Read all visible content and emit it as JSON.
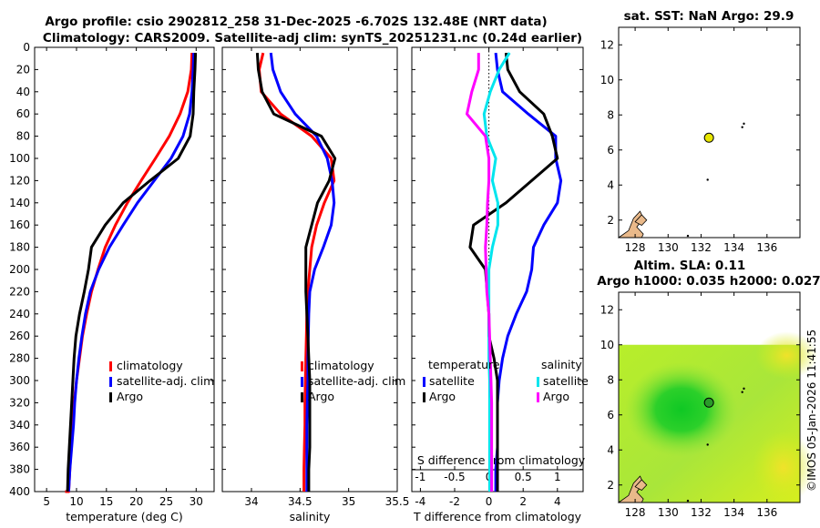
{
  "title": {
    "line1": "Argo profile: csio 2902812_258 31-Dec-2025 -6.702S 132.48E (NRT data)",
    "line2": "Climatology: CARS2009. Satellite-adj clim: synTS_20251231.nc (0.24d earlier)"
  },
  "colors": {
    "climatology": "#ff0000",
    "satellite": "#0000ff",
    "argo": "#000000",
    "s_satellite": "#00e5ee",
    "s_argo": "#ff00ff"
  },
  "stamp": "©IMOS 05-Jan-2026 11:41:55",
  "chart_data": [
    {
      "id": "temperature",
      "type": "line",
      "xlabel": "temperature (deg C)",
      "xlim": [
        3,
        33
      ],
      "xticks": [
        5,
        10,
        15,
        20,
        25,
        30
      ],
      "ylim": [
        0,
        400
      ],
      "yticks": [
        0,
        20,
        40,
        60,
        80,
        100,
        120,
        140,
        160,
        180,
        200,
        220,
        240,
        260,
        280,
        300,
        320,
        340,
        360,
        380,
        400
      ],
      "legend": {
        "position": "lower-right",
        "entries": [
          "climatology",
          "satellite-adj. clim",
          "Argo"
        ]
      },
      "series": [
        {
          "name": "climatology",
          "color": "#ff0000",
          "x": [
            29.3,
            29.2,
            28.6,
            27.3,
            25.5,
            23.2,
            20.8,
            18.5,
            16.5,
            14.8,
            13.6,
            12.5,
            11.7,
            11.0,
            10.5,
            10.0,
            9.6,
            9.3,
            9.1,
            8.9,
            8.7,
            8.5,
            8.3,
            8.2,
            8.1
          ],
          "y": [
            5,
            20,
            40,
            60,
            80,
            100,
            120,
            140,
            160,
            180,
            200,
            220,
            240,
            260,
            280,
            300,
            320,
            340,
            360,
            380,
            400,
            400,
            400,
            400,
            400
          ]
        },
        {
          "name": "satellite-adj. clim",
          "color": "#0000ff",
          "x": [
            29.6,
            29.5,
            29.3,
            28.9,
            27.8,
            25.8,
            23.0,
            20.2,
            17.8,
            15.5,
            13.7,
            12.3,
            11.5,
            10.9,
            10.4,
            10.0,
            9.7,
            9.5,
            9.2,
            8.9,
            8.7
          ],
          "y": [
            5,
            20,
            40,
            60,
            80,
            100,
            120,
            140,
            160,
            180,
            200,
            220,
            240,
            260,
            280,
            300,
            320,
            340,
            360,
            380,
            400
          ]
        },
        {
          "name": "Argo",
          "color": "#000000",
          "x": [
            29.9,
            29.8,
            29.6,
            29.5,
            29.0,
            27.0,
            22.3,
            17.8,
            14.8,
            12.5,
            12.0,
            11.3,
            10.5,
            9.9,
            9.6,
            9.4,
            9.2,
            9.0,
            8.8,
            8.6,
            8.5
          ],
          "y": [
            5,
            20,
            40,
            60,
            80,
            100,
            120,
            140,
            160,
            180,
            200,
            220,
            240,
            260,
            280,
            300,
            320,
            340,
            360,
            380,
            400
          ]
        }
      ]
    },
    {
      "id": "salinity",
      "type": "line",
      "xlabel": "salinity",
      "xlim": [
        33.7,
        35.5
      ],
      "xticks": [
        34,
        34.5,
        35,
        35.5
      ],
      "ylim": [
        0,
        400
      ],
      "legend": {
        "position": "lower-right",
        "entries": [
          "climatology",
          "satellite-adj. clim",
          "Argo"
        ]
      },
      "series": [
        {
          "name": "climatology",
          "color": "#ff0000",
          "x": [
            34.12,
            34.08,
            34.1,
            34.3,
            34.62,
            34.82,
            34.85,
            34.75,
            34.67,
            34.62,
            34.6,
            34.58,
            34.57,
            34.565,
            34.56,
            34.555,
            34.55,
            34.55,
            34.545,
            34.54,
            34.54
          ],
          "y": [
            5,
            20,
            40,
            60,
            80,
            100,
            120,
            140,
            160,
            180,
            200,
            220,
            240,
            260,
            280,
            300,
            320,
            340,
            360,
            380,
            400
          ]
        },
        {
          "name": "satellite-adj. clim",
          "color": "#0000ff",
          "x": [
            34.2,
            34.22,
            34.3,
            34.45,
            34.67,
            34.78,
            34.83,
            34.85,
            34.82,
            34.74,
            34.65,
            34.6,
            34.59,
            34.585,
            34.58,
            34.58,
            34.575,
            34.57,
            34.57,
            34.57,
            34.57
          ],
          "y": [
            5,
            20,
            40,
            60,
            80,
            100,
            120,
            140,
            160,
            180,
            200,
            220,
            240,
            260,
            280,
            300,
            320,
            340,
            360,
            380,
            400
          ]
        },
        {
          "name": "Argo",
          "color": "#000000",
          "x": [
            34.06,
            34.07,
            34.11,
            34.23,
            34.72,
            34.86,
            34.8,
            34.68,
            34.62,
            34.56,
            34.56,
            34.56,
            34.57,
            34.58,
            34.59,
            34.6,
            34.6,
            34.6,
            34.6,
            34.59,
            34.59
          ],
          "y": [
            5,
            20,
            40,
            60,
            80,
            100,
            120,
            140,
            160,
            180,
            200,
            220,
            240,
            260,
            280,
            300,
            320,
            340,
            360,
            380,
            400
          ]
        }
      ]
    },
    {
      "id": "difference",
      "type": "line",
      "xlabel": "T difference from climatology",
      "xlabel_top": "S difference from climatology",
      "xlim": [
        -4.5,
        5.5
      ],
      "xticks": [
        -4,
        -2,
        0,
        2,
        4
      ],
      "xlim_top": [
        -1.125,
        1.375
      ],
      "xticks_top": [
        -1,
        -0.5,
        0,
        0.5,
        1
      ],
      "xticklabels_top": [
        "-1",
        "-0.5",
        "0",
        "0.5",
        "1"
      ],
      "ylim": [
        0,
        400
      ],
      "legend": {
        "position": "lower",
        "left_title": "temperature",
        "right_title": "salinity",
        "entries_left": [
          "satellite",
          "Argo"
        ],
        "entries_right": [
          "satellite",
          "Argo"
        ]
      },
      "series": [
        {
          "name": "T satellite",
          "color": "#0000ff",
          "x": [
            0.4,
            0.5,
            0.8,
            2.3,
            3.9,
            3.9,
            4.2,
            4.0,
            3.2,
            2.6,
            2.5,
            2.2,
            1.6,
            1.1,
            0.8,
            0.6,
            0.5,
            0.5,
            0.5,
            0.4,
            0.4
          ],
          "y": [
            5,
            20,
            40,
            60,
            80,
            100,
            120,
            140,
            160,
            180,
            200,
            220,
            240,
            260,
            280,
            300,
            320,
            340,
            360,
            380,
            400
          ]
        },
        {
          "name": "T Argo",
          "color": "#000000",
          "x": [
            1.0,
            1.1,
            1.8,
            3.2,
            3.7,
            4.0,
            2.5,
            1.0,
            -0.9,
            -1.1,
            -0.2,
            -0.1,
            0.0,
            0.0,
            0.3,
            0.5,
            0.5,
            0.5,
            0.5,
            0.5,
            0.5
          ],
          "y": [
            5,
            20,
            40,
            60,
            80,
            100,
            120,
            140,
            160,
            180,
            200,
            220,
            240,
            260,
            280,
            300,
            320,
            340,
            360,
            380,
            400
          ]
        },
        {
          "name": "S satellite",
          "color": "#00e5ee",
          "x": [
            0.3,
            0.15,
            0.02,
            -0.07,
            -0.03,
            0.1,
            0.05,
            0.13,
            0.13,
            0.05,
            0.0,
            0.0,
            0.0,
            0.0,
            0.0,
            0.01,
            0.01,
            0.01,
            0.01,
            0.01,
            0.01
          ],
          "y": [
            5,
            20,
            40,
            60,
            80,
            100,
            120,
            140,
            160,
            180,
            200,
            220,
            240,
            260,
            280,
            300,
            320,
            340,
            360,
            380,
            400
          ]
        },
        {
          "name": "S Argo",
          "color": "#ff00ff",
          "x": [
            -0.15,
            -0.15,
            -0.25,
            -0.32,
            -0.05,
            0.0,
            0.0,
            -0.02,
            -0.03,
            -0.05,
            -0.04,
            -0.03,
            0.0,
            0.01,
            0.02,
            0.03,
            0.04,
            0.04,
            0.04,
            0.04,
            0.04
          ],
          "y": [
            5,
            20,
            40,
            60,
            80,
            100,
            120,
            140,
            160,
            180,
            200,
            220,
            240,
            260,
            280,
            300,
            320,
            340,
            360,
            380,
            400
          ]
        }
      ]
    },
    {
      "id": "sst-map",
      "type": "scatter",
      "title": "sat. SST: NaN Argo: 29.9",
      "xlim": [
        127,
        138
      ],
      "ylim": [
        1,
        13
      ],
      "xticks": [
        128,
        130,
        132,
        134,
        136
      ],
      "yticks": [
        2,
        4,
        6,
        8,
        10,
        12
      ],
      "points": [
        {
          "name": "Argo float",
          "lon": 132.48,
          "lat": 6.7,
          "color": "#e8e600"
        }
      ]
    },
    {
      "id": "sla-map",
      "type": "heatmap",
      "title_line1": "Altim. SLA: 0.11",
      "title_line2": "Argo h1000: 0.035 h2000: 0.027",
      "xlim": [
        127,
        138
      ],
      "ylim": [
        1,
        13
      ],
      "xticks": [
        128,
        130,
        132,
        134,
        136
      ],
      "yticks": [
        2,
        4,
        6,
        8,
        10,
        12
      ],
      "data_extent_lat_max": 10,
      "points": [
        {
          "name": "Argo float",
          "lon": 132.48,
          "lat": 6.7,
          "color": "#2a9a2a"
        }
      ]
    }
  ]
}
